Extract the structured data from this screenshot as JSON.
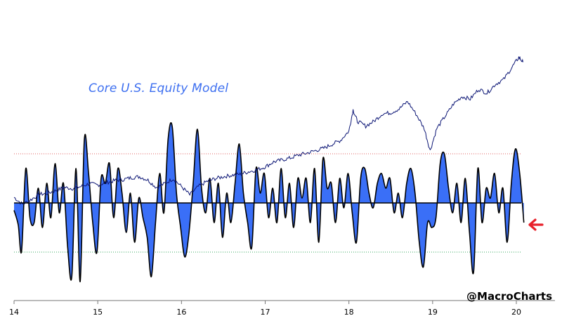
{
  "colors": {
    "fill": "#3a6ff7",
    "outline": "#000000",
    "price_line": "#0b1575",
    "upper_band": "#e06060",
    "lower_band": "#3aa860",
    "arrow": "#e8202a",
    "title": "#3d6ff0",
    "background": "#ffffff"
  },
  "annotations": {
    "title": "Core U.S. Equity Model",
    "credit": "@MacroCharts",
    "arrow_icon": "red-left-arrow-icon"
  },
  "chart_data": {
    "type": "area",
    "title": "Core U.S. Equity Model",
    "xlabel": "",
    "ylabel": "",
    "x_ticks": [
      "14",
      "15",
      "16",
      "17",
      "18",
      "19",
      "20"
    ],
    "x_range": [
      2014.0,
      2020.17
    ],
    "y_axis_labels": "none",
    "grid": false,
    "reference_lines": {
      "zero": 0,
      "upper_threshold": 1,
      "lower_threshold": -1
    },
    "series": [
      {
        "kind": "filled-oscillator",
        "points": [
          [
            2014.0,
            -0.15
          ],
          [
            2014.05,
            -0.45
          ],
          [
            2014.09,
            -0.98
          ],
          [
            2014.14,
            0.7
          ],
          [
            2014.19,
            -0.3
          ],
          [
            2014.24,
            -0.4
          ],
          [
            2014.29,
            0.3
          ],
          [
            2014.34,
            -0.5
          ],
          [
            2014.39,
            0.4
          ],
          [
            2014.44,
            -0.3
          ],
          [
            2014.49,
            0.8
          ],
          [
            2014.54,
            -0.2
          ],
          [
            2014.59,
            0.4
          ],
          [
            2014.64,
            -0.9
          ],
          [
            2014.69,
            -1.5
          ],
          [
            2014.74,
            0.7
          ],
          [
            2014.79,
            -1.6
          ],
          [
            2014.84,
            1.3
          ],
          [
            2014.89,
            0.6
          ],
          [
            2014.94,
            -0.4
          ],
          [
            2014.99,
            -1.0
          ],
          [
            2015.04,
            0.5
          ],
          [
            2015.09,
            0.4
          ],
          [
            2015.14,
            0.8
          ],
          [
            2015.19,
            -0.3
          ],
          [
            2015.24,
            0.7
          ],
          [
            2015.29,
            0.2
          ],
          [
            2015.34,
            -0.6
          ],
          [
            2015.39,
            0.2
          ],
          [
            2015.44,
            -0.8
          ],
          [
            2015.49,
            0.1
          ],
          [
            2015.54,
            -0.3
          ],
          [
            2015.59,
            -0.7
          ],
          [
            2015.64,
            -1.5
          ],
          [
            2015.69,
            -0.4
          ],
          [
            2015.74,
            0.6
          ],
          [
            2015.79,
            -0.2
          ],
          [
            2015.84,
            1.3
          ],
          [
            2015.89,
            1.55
          ],
          [
            2015.94,
            0.2
          ],
          [
            2015.99,
            -0.5
          ],
          [
            2016.04,
            -1.1
          ],
          [
            2016.09,
            -0.6
          ],
          [
            2016.14,
            0.4
          ],
          [
            2016.19,
            1.5
          ],
          [
            2016.24,
            0.3
          ],
          [
            2016.29,
            -0.2
          ],
          [
            2016.34,
            0.5
          ],
          [
            2016.39,
            -0.4
          ],
          [
            2016.44,
            0.4
          ],
          [
            2016.49,
            -0.7
          ],
          [
            2016.54,
            0.2
          ],
          [
            2016.59,
            -0.4
          ],
          [
            2016.64,
            0.4
          ],
          [
            2016.69,
            1.2
          ],
          [
            2016.74,
            0.2
          ],
          [
            2016.79,
            -0.4
          ],
          [
            2016.84,
            -0.9
          ],
          [
            2016.89,
            0.7
          ],
          [
            2016.94,
            0.2
          ],
          [
            2016.99,
            0.6
          ],
          [
            2017.04,
            -0.3
          ],
          [
            2017.09,
            0.3
          ],
          [
            2017.14,
            -0.4
          ],
          [
            2017.19,
            0.7
          ],
          [
            2017.24,
            -0.3
          ],
          [
            2017.29,
            0.4
          ],
          [
            2017.34,
            -0.5
          ],
          [
            2017.39,
            0.5
          ],
          [
            2017.44,
            0.1
          ],
          [
            2017.49,
            0.5
          ],
          [
            2017.54,
            -0.4
          ],
          [
            2017.59,
            0.7
          ],
          [
            2017.64,
            -0.8
          ],
          [
            2017.69,
            0.9
          ],
          [
            2017.74,
            0.3
          ],
          [
            2017.79,
            0.4
          ],
          [
            2017.84,
            -0.4
          ],
          [
            2017.89,
            0.5
          ],
          [
            2017.94,
            -0.1
          ],
          [
            2017.99,
            0.6
          ],
          [
            2018.04,
            -0.2
          ],
          [
            2018.09,
            -0.8
          ],
          [
            2018.14,
            0.5
          ],
          [
            2018.19,
            0.7
          ],
          [
            2018.24,
            0.2
          ],
          [
            2018.29,
            -0.1
          ],
          [
            2018.34,
            0.4
          ],
          [
            2018.39,
            0.6
          ],
          [
            2018.44,
            0.3
          ],
          [
            2018.49,
            0.5
          ],
          [
            2018.54,
            -0.2
          ],
          [
            2018.59,
            0.2
          ],
          [
            2018.64,
            -0.3
          ],
          [
            2018.69,
            0.4
          ],
          [
            2018.74,
            0.7
          ],
          [
            2018.79,
            0.2
          ],
          [
            2018.84,
            -0.8
          ],
          [
            2018.89,
            -1.3
          ],
          [
            2018.94,
            -0.4
          ],
          [
            2018.99,
            -0.5
          ],
          [
            2019.04,
            -0.3
          ],
          [
            2019.09,
            0.8
          ],
          [
            2019.14,
            1.0
          ],
          [
            2019.19,
            0.3
          ],
          [
            2019.24,
            -0.2
          ],
          [
            2019.29,
            0.4
          ],
          [
            2019.34,
            -0.4
          ],
          [
            2019.39,
            0.5
          ],
          [
            2019.44,
            -0.6
          ],
          [
            2019.49,
            -1.4
          ],
          [
            2019.54,
            0.7
          ],
          [
            2019.59,
            -0.4
          ],
          [
            2019.64,
            0.3
          ],
          [
            2019.69,
            0.1
          ],
          [
            2019.74,
            0.6
          ],
          [
            2019.79,
            -0.2
          ],
          [
            2019.84,
            0.3
          ],
          [
            2019.89,
            -0.8
          ],
          [
            2019.94,
            0.4
          ],
          [
            2019.99,
            1.1
          ],
          [
            2020.04,
            0.6
          ],
          [
            2020.09,
            -0.4
          ]
        ]
      },
      {
        "kind": "index-line",
        "points": [
          [
            2014.0,
            0.0
          ],
          [
            2014.1,
            -0.14
          ],
          [
            2014.2,
            -0.05
          ],
          [
            2014.3,
            0.06
          ],
          [
            2014.4,
            0.08
          ],
          [
            2014.5,
            0.14
          ],
          [
            2014.6,
            0.2
          ],
          [
            2014.7,
            0.18
          ],
          [
            2014.8,
            0.22
          ],
          [
            2014.9,
            0.28
          ],
          [
            2015.0,
            0.25
          ],
          [
            2015.1,
            0.3
          ],
          [
            2015.2,
            0.34
          ],
          [
            2015.3,
            0.36
          ],
          [
            2015.4,
            0.4
          ],
          [
            2015.5,
            0.42
          ],
          [
            2015.6,
            0.35
          ],
          [
            2015.7,
            0.2
          ],
          [
            2015.8,
            0.28
          ],
          [
            2015.9,
            0.38
          ],
          [
            2016.0,
            0.22
          ],
          [
            2016.1,
            0.05
          ],
          [
            2016.2,
            0.22
          ],
          [
            2016.3,
            0.32
          ],
          [
            2016.4,
            0.38
          ],
          [
            2016.5,
            0.42
          ],
          [
            2016.6,
            0.45
          ],
          [
            2016.7,
            0.47
          ],
          [
            2016.8,
            0.52
          ],
          [
            2016.9,
            0.56
          ],
          [
            2017.0,
            0.62
          ],
          [
            2017.1,
            0.72
          ],
          [
            2017.2,
            0.76
          ],
          [
            2017.3,
            0.8
          ],
          [
            2017.4,
            0.86
          ],
          [
            2017.5,
            0.9
          ],
          [
            2017.6,
            0.95
          ],
          [
            2017.7,
            1.0
          ],
          [
            2017.8,
            1.08
          ],
          [
            2017.9,
            1.16
          ],
          [
            2018.0,
            1.35
          ],
          [
            2018.05,
            1.78
          ],
          [
            2018.1,
            1.55
          ],
          [
            2018.2,
            1.45
          ],
          [
            2018.3,
            1.55
          ],
          [
            2018.4,
            1.7
          ],
          [
            2018.5,
            1.72
          ],
          [
            2018.6,
            1.8
          ],
          [
            2018.7,
            1.95
          ],
          [
            2018.8,
            1.7
          ],
          [
            2018.9,
            1.4
          ],
          [
            2018.97,
            0.95
          ],
          [
            2019.05,
            1.4
          ],
          [
            2019.15,
            1.65
          ],
          [
            2019.25,
            1.9
          ],
          [
            2019.35,
            2.05
          ],
          [
            2019.45,
            2.0
          ],
          [
            2019.55,
            2.2
          ],
          [
            2019.65,
            2.12
          ],
          [
            2019.75,
            2.3
          ],
          [
            2019.85,
            2.4
          ],
          [
            2019.95,
            2.65
          ],
          [
            2020.03,
            2.85
          ],
          [
            2020.08,
            2.75
          ]
        ]
      }
    ],
    "marker": {
      "x": 2020.09,
      "value": -0.4,
      "direction": "left"
    }
  }
}
